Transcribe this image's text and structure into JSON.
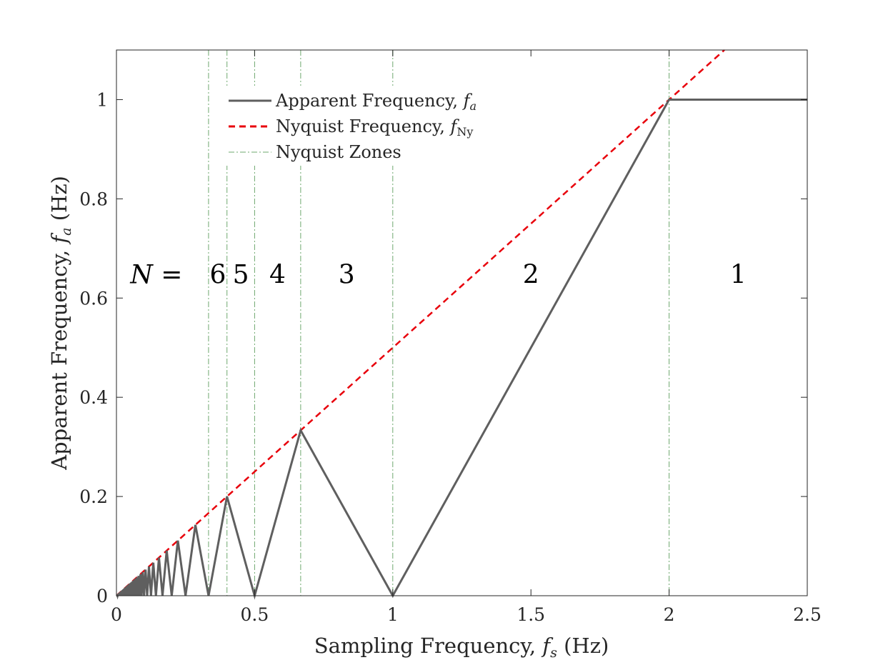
{
  "chart_data": {
    "type": "line",
    "title": "",
    "xlabel": "Sampling Frequency, ",
    "xlabel_var": "f",
    "xlabel_sub": "s",
    "xlabel_unit": " (Hz)",
    "ylabel": "Apparent Frequency, ",
    "ylabel_var": "f",
    "ylabel_sub": "a",
    "ylabel_unit": " (Hz)",
    "xlim": [
      0,
      2.5
    ],
    "ylim": [
      0,
      1.1
    ],
    "xticks": [
      0,
      0.5,
      1,
      1.5,
      2,
      2.5
    ],
    "xtick_labels": [
      "0",
      "0.5",
      "1",
      "1.5",
      "2",
      "2.5"
    ],
    "yticks": [
      0,
      0.2,
      0.4,
      0.6,
      0.8,
      1
    ],
    "ytick_labels": [
      "0",
      "0.2",
      "0.4",
      "0.6",
      "0.8",
      "1"
    ],
    "grid": false,
    "legend_position": "top-left",
    "series": [
      {
        "name": "Apparent Frequency, ",
        "name_var": "f",
        "name_sub": "a",
        "style": "solid",
        "color": "#5f5f5f",
        "signal_frequency": 1,
        "x": [
          0.01,
          0.015,
          0.02,
          0.025,
          0.03,
          0.035,
          0.04,
          0.045,
          0.05,
          0.055,
          0.06,
          0.065,
          0.07,
          0.075,
          0.08,
          0.085,
          0.09,
          0.095,
          0.1,
          0.105,
          0.11,
          0.115,
          0.12,
          0.125,
          0.13,
          0.135,
          0.14,
          0.145,
          0.15,
          0.155,
          0.16,
          0.165,
          0.17,
          0.175,
          0.18,
          0.185,
          0.19,
          0.195,
          0.2,
          0.205,
          0.21,
          0.215,
          0.22,
          0.225,
          0.23,
          0.235,
          0.24,
          0.245,
          0.25,
          0.255,
          0.26,
          0.265,
          0.27,
          0.275,
          0.28,
          0.285,
          0.29,
          0.295,
          0.3,
          0.305,
          0.31,
          0.315,
          0.32,
          0.325,
          0.33,
          0.335,
          0.34,
          0.345,
          0.35,
          0.355,
          0.36,
          0.365,
          0.37,
          0.375,
          0.38,
          0.385,
          0.39,
          0.395,
          0.4,
          0.405,
          0.41,
          0.415,
          0.42,
          0.425,
          0.43,
          0.435,
          0.44,
          0.445,
          0.45,
          0.455,
          0.46,
          0.465,
          0.47,
          0.475,
          0.48,
          0.485,
          0.49,
          0.495,
          0.5,
          0.505,
          0.51,
          0.515,
          0.52,
          0.525,
          0.53,
          0.535,
          0.54,
          0.545,
          0.55,
          0.555,
          0.56,
          0.565,
          0.57,
          0.575,
          0.58,
          0.585,
          0.59,
          0.595,
          0.6,
          0.605,
          0.61,
          0.615,
          0.62,
          0.625,
          0.63,
          0.635,
          0.64,
          0.645,
          0.65,
          0.655,
          0.66,
          0.665,
          0.67,
          0.675,
          0.68,
          0.685,
          0.69,
          0.695,
          0.7,
          0.705,
          0.71,
          0.715,
          0.72,
          0.725,
          0.73,
          0.735,
          0.74,
          0.745,
          0.75,
          0.755,
          0.76,
          0.765,
          0.77,
          0.775,
          0.78,
          0.785,
          0.79,
          0.795,
          0.8,
          0.805,
          0.81,
          0.815,
          0.82,
          0.825,
          0.83,
          0.835,
          0.84,
          0.845,
          0.85,
          0.855,
          0.86,
          0.865,
          0.87,
          0.875,
          0.88,
          0.885,
          0.89,
          0.895,
          0.9,
          0.905,
          0.91,
          0.915,
          0.92,
          0.925,
          0.93,
          0.935,
          0.94,
          0.945,
          0.95,
          0.955,
          0.96,
          0.965,
          0.97,
          0.975,
          0.98,
          0.985,
          0.99,
          0.995,
          1,
          1.005,
          1.01,
          1.015,
          1.02,
          1.025,
          1.03,
          1.035,
          1.04,
          1.045,
          1.05,
          1.055,
          1.06,
          1.065,
          1.07,
          1.075,
          1.08,
          1.085,
          1.09,
          1.095,
          1.1,
          1.105,
          1.11,
          1.115,
          1.12,
          1.125,
          1.13,
          1.135,
          1.14,
          1.145,
          1.15,
          1.155,
          1.16,
          1.165,
          1.17,
          1.175,
          1.18,
          1.185,
          1.19,
          1.195,
          1.2,
          1.205,
          1.21,
          1.215,
          1.22,
          1.225,
          1.23,
          1.235,
          1.24,
          1.245,
          1.25,
          1.255,
          1.26,
          1.265,
          1.27,
          1.275,
          1.28,
          1.285,
          1.29,
          1.295,
          1.3,
          1.305,
          1.31,
          1.315,
          1.32,
          1.325,
          1.33,
          1.335,
          1.34,
          1.345,
          1.35,
          1.355,
          1.36,
          1.365,
          1.37,
          1.375,
          1.38,
          1.385,
          1.39,
          1.395,
          1.4,
          1.405,
          1.41,
          1.415,
          1.42,
          1.425,
          1.43,
          1.435,
          1.44,
          1.445,
          1.45,
          1.455,
          1.46,
          1.465,
          1.47,
          1.475,
          1.48,
          1.485,
          1.49,
          1.495,
          1.5,
          1.505,
          1.51,
          1.515,
          1.52,
          1.525,
          1.53,
          1.535,
          1.54,
          1.545,
          1.55,
          1.555,
          1.56,
          1.565,
          1.57,
          1.575,
          1.58,
          1.585,
          1.59,
          1.595,
          1.6,
          1.605,
          1.61,
          1.615,
          1.62,
          1.625,
          1.63,
          1.635,
          1.64,
          1.645,
          1.65,
          1.655,
          1.66,
          1.665,
          1.67,
          1.675,
          1.68,
          1.685,
          1.69,
          1.695,
          1.7,
          1.705,
          1.71,
          1.715,
          1.72,
          1.725,
          1.73,
          1.735,
          1.74,
          1.745,
          1.75,
          1.755,
          1.76,
          1.765,
          1.77,
          1.775,
          1.78,
          1.785,
          1.79,
          1.795,
          1.8,
          1.805,
          1.81,
          1.815,
          1.82,
          1.825,
          1.83,
          1.835,
          1.84,
          1.845,
          1.85,
          1.855,
          1.86,
          1.865,
          1.87,
          1.875,
          1.88,
          1.885,
          1.89,
          1.895,
          1.9,
          1.905,
          1.91,
          1.915,
          1.92,
          1.925,
          1.93,
          1.935,
          1.94,
          1.945,
          1.95,
          1.955,
          1.96,
          1.965,
          1.97,
          1.975,
          1.98,
          1.985,
          1.99,
          1.995,
          2,
          2.005,
          2.01,
          2.015,
          2.02,
          2.025,
          2.03,
          2.035,
          2.04,
          2.045,
          2.05,
          2.055,
          2.06,
          2.065,
          2.07,
          2.075,
          2.08,
          2.085,
          2.09,
          2.095,
          2.1,
          2.105,
          2.11,
          2.115,
          2.12,
          2.125,
          2.13,
          2.135,
          2.14,
          2.145,
          2.15,
          2.155,
          2.16,
          2.165,
          2.17,
          2.175,
          2.18,
          2.185,
          2.19,
          2.195,
          2.2,
          2.205,
          2.21,
          2.215,
          2.22,
          2.225,
          2.23,
          2.235,
          2.24,
          2.245,
          2.25,
          2.255,
          2.26,
          2.265,
          2.27,
          2.275,
          2.28,
          2.285,
          2.29,
          2.295,
          2.3,
          2.305,
          2.31,
          2.315,
          2.32,
          2.325,
          2.33,
          2.335,
          2.34,
          2.345,
          2.35,
          2.355,
          2.36,
          2.365,
          2.37,
          2.375,
          2.38,
          2.385,
          2.39,
          2.395,
          2.4,
          2.405,
          2.41,
          2.415,
          2.42,
          2.425,
          2.43,
          2.435,
          2.44,
          2.445,
          2.45,
          2.455,
          2.46,
          2.465,
          2.47,
          2.475,
          2.48,
          2.485,
          2.49,
          2.495,
          2.5
        ],
        "y": [
          0,
          0.005,
          0,
          0.0125,
          0,
          0.0175,
          0,
          0.0135,
          0,
          0.0275,
          0,
          0.02,
          0,
          0.0375,
          0,
          0.0325,
          0,
          0.0475,
          0,
          0.04,
          0,
          0.0225,
          0,
          0,
          0.0225,
          0.0415,
          0.02,
          0.0125,
          0.05,
          0.0625,
          0.04,
          0.0125,
          0.0125,
          0.025,
          0.08,
          0.075,
          0.05,
          0.0225,
          0,
          0.0225,
          0.0475,
          0.075,
          0.1,
          0.1,
          0.08,
          0.06,
          0.04,
          0.02,
          0,
          0.02,
          0.04,
          0.06,
          0.08,
          0.1,
          0.12,
          0.14,
          0.13,
          0.115,
          0.1,
          0.085,
          0.07,
          0.055,
          0.04,
          0.025,
          0.01,
          0.005,
          0.02,
          0.035,
          0.05,
          0.065,
          0.08,
          0.095,
          0.11,
          0.125,
          0.14,
          0.155,
          0.17,
          0.185,
          0.2,
          0.19,
          0.18,
          0.17,
          0.16,
          0.15,
          0.14,
          0.13,
          0.12,
          0.11,
          0.1,
          0.09,
          0.08,
          0.07,
          0.06,
          0.05,
          0.04,
          0.03,
          0.02,
          0.01,
          0,
          0.01,
          0.02,
          0.03,
          0.04,
          0.05,
          0.06,
          0.07,
          0.08,
          0.09,
          0.1,
          0.11,
          0.12,
          0.13,
          0.14,
          0.15,
          0.16,
          0.17,
          0.18,
          0.19,
          0.2,
          0.21,
          0.22,
          0.23,
          0.24,
          0.25,
          0.26,
          0.27,
          0.28,
          0.29,
          0.3,
          0.31,
          0.32,
          0.33,
          0.33,
          0.325,
          0.32,
          0.315,
          0.31,
          0.305,
          0.3,
          0.295,
          0.29,
          0.285,
          0.28,
          0.275,
          0.27,
          0.265,
          0.26,
          0.255,
          0.25,
          0.245,
          0.24,
          0.235,
          0.23,
          0.225,
          0.22,
          0.215,
          0.21,
          0.205,
          0.2,
          0.195,
          0.19,
          0.185,
          0.18,
          0.175,
          0.17,
          0.165,
          0.16,
          0.155,
          0.15,
          0.145,
          0.14,
          0.135,
          0.13,
          0.125,
          0.12,
          0.115,
          0.11,
          0.105,
          0.1,
          0.095,
          0.09,
          0.085,
          0.08,
          0.075,
          0.07,
          0.065,
          0.06,
          0.055,
          0.05,
          0.045,
          0.04,
          0.035,
          0.03,
          0.025,
          0.02,
          0.015,
          0.01,
          0.005,
          0,
          0.005,
          0.01,
          0.015,
          0.02,
          0.025,
          0.03,
          0.035,
          0.04,
          0.045,
          0.05,
          0.055,
          0.06,
          0.065,
          0.07,
          0.075,
          0.08,
          0.085,
          0.09,
          0.095,
          0.1,
          0.105,
          0.11,
          0.115,
          0.12,
          0.125,
          0.13,
          0.135,
          0.14,
          0.145,
          0.15,
          0.155,
          0.16,
          0.165,
          0.17,
          0.175,
          0.18,
          0.185,
          0.19,
          0.195,
          0.2,
          0.205,
          0.21,
          0.215,
          0.22,
          0.225,
          0.23,
          0.235,
          0.24,
          0.245,
          0.25,
          0.255,
          0.26,
          0.265,
          0.27,
          0.275,
          0.28,
          0.285,
          0.29,
          0.295,
          0.3,
          0.305,
          0.31,
          0.315,
          0.32,
          0.325,
          0.33,
          0.335,
          0.34,
          0.345,
          0.35,
          0.355,
          0.36,
          0.365,
          0.37,
          0.375,
          0.38,
          0.385,
          0.39,
          0.395,
          0.4,
          0.405,
          0.41,
          0.415,
          0.42,
          0.425,
          0.43,
          0.435,
          0.44,
          0.445,
          0.45,
          0.455,
          0.46,
          0.465,
          0.47,
          0.475,
          0.48,
          0.485,
          0.49,
          0.495,
          0.5,
          0.505,
          0.51,
          0.515,
          0.52,
          0.525,
          0.53,
          0.535,
          0.54,
          0.545,
          0.55,
          0.555,
          0.56,
          0.565,
          0.57,
          0.575,
          0.58,
          0.585,
          0.59,
          0.595,
          0.6,
          0.605,
          0.61,
          0.615,
          0.62,
          0.625,
          0.63,
          0.635,
          0.64,
          0.645,
          0.65,
          0.655,
          0.66,
          0.665,
          0.67,
          0.675,
          0.68,
          0.685,
          0.69,
          0.695,
          0.7,
          0.705,
          0.71,
          0.715,
          0.72,
          0.725,
          0.73,
          0.735,
          0.74,
          0.745,
          0.75,
          0.755,
          0.76,
          0.765,
          0.77,
          0.775,
          0.78,
          0.785,
          0.79,
          0.795,
          0.8,
          0.805,
          0.81,
          0.815,
          0.82,
          0.825,
          0.83,
          0.835,
          0.84,
          0.845,
          0.85,
          0.855,
          0.86,
          0.865,
          0.87,
          0.875,
          0.88,
          0.885,
          0.89,
          0.895,
          0.9,
          0.905,
          0.91,
          0.915,
          0.92,
          0.925,
          0.93,
          0.935,
          0.94,
          0.945,
          0.95,
          0.955,
          0.96,
          0.965,
          0.97,
          0.975,
          0.98,
          0.985,
          0.99,
          0.995,
          1,
          1,
          1,
          1,
          1,
          1,
          1,
          1,
          1,
          1,
          1,
          1,
          1,
          1,
          1,
          1,
          1,
          1,
          1,
          1,
          1,
          1,
          1,
          1,
          1,
          1,
          1,
          1,
          1,
          1,
          1,
          1,
          1,
          1,
          1,
          1,
          1,
          1,
          1,
          1,
          1,
          1,
          1,
          1,
          1,
          1,
          1,
          1,
          1,
          1,
          1,
          1,
          1,
          1,
          1,
          1,
          1,
          1,
          1,
          1,
          1,
          1,
          1,
          1,
          1,
          1,
          1,
          1,
          1,
          1,
          1,
          1,
          1,
          1,
          1,
          1,
          1,
          1,
          1,
          1,
          1,
          1,
          1,
          1,
          1,
          1,
          1,
          1,
          1,
          1,
          1,
          1,
          1,
          1,
          1,
          1,
          1,
          1,
          1,
          1,
          1
        ]
      },
      {
        "name": "Nyquist Frequency, ",
        "name_var": "f",
        "name_sub": "Ny",
        "style": "dashed",
        "color": "#e8000b",
        "x": [
          0,
          2.2
        ],
        "y": [
          0,
          1.1
        ]
      },
      {
        "name": "Nyquist Zones",
        "style": "dashdot",
        "color": "#6ea86e",
        "boundaries": [
          0.3333,
          0.4,
          0.5,
          0.6667,
          1,
          2
        ]
      }
    ],
    "annotations": {
      "prefix_var": "N",
      "prefix_eq": " =",
      "zones": [
        {
          "label": "6",
          "x": 0.367
        },
        {
          "label": "5",
          "x": 0.45
        },
        {
          "label": "4",
          "x": 0.583
        },
        {
          "label": "3",
          "x": 0.833
        },
        {
          "label": "2",
          "x": 1.5
        },
        {
          "label": "1",
          "x": 2.25
        }
      ],
      "y": 0.63,
      "prefix_x": 0.05
    }
  }
}
